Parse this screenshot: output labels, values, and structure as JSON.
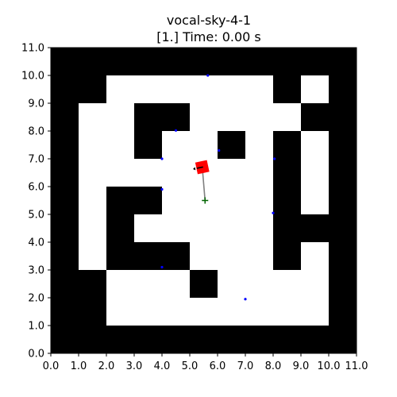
{
  "chart_data": {
    "type": "scatter",
    "title": "vocal-sky-4-1",
    "subtitle": "[1.] Time: 0.00 s",
    "xlabel": "",
    "ylabel": "",
    "xlim": [
      0.0,
      11.0
    ],
    "ylim": [
      0.0,
      11.0
    ],
    "grid": false,
    "x_ticks": [
      "0.0",
      "1.0",
      "2.0",
      "3.0",
      "4.0",
      "5.0",
      "6.0",
      "7.0",
      "8.0",
      "9.0",
      "10.0",
      "11.0"
    ],
    "y_ticks": [
      "0.0",
      "1.0",
      "2.0",
      "3.0",
      "4.0",
      "5.0",
      "6.0",
      "7.0",
      "8.0",
      "9.0",
      "10.0",
      "11.0"
    ],
    "occupancy_grid": [
      "11111111111",
      "11000000101",
      "10011000011",
      "10010010101",
      "10000000101",
      "10110000101",
      "10100000111",
      "10111000101",
      "11000100001",
      "11000000001",
      "11111111111"
    ],
    "wall_color": "#000000",
    "free_color": "#ffffff",
    "waypoints": [
      {
        "x": 5.65,
        "y": 10.0
      },
      {
        "x": 4.5,
        "y": 8.02
      },
      {
        "x": 4.0,
        "y": 7.0
      },
      {
        "x": 6.05,
        "y": 7.3
      },
      {
        "x": 8.05,
        "y": 7.0
      },
      {
        "x": 4.0,
        "y": 5.9
      },
      {
        "x": 8.0,
        "y": 5.05
      },
      {
        "x": 4.0,
        "y": 3.1
      },
      {
        "x": 7.0,
        "y": 1.95
      }
    ],
    "waypoint_color": "#0000ff",
    "robot": {
      "x": 5.45,
      "y": 6.7,
      "heading_deg": 180,
      "color": "#ff0000"
    },
    "goal": {
      "x": 5.55,
      "y": 5.5,
      "color": "#006400"
    },
    "link_color": "#808080"
  }
}
